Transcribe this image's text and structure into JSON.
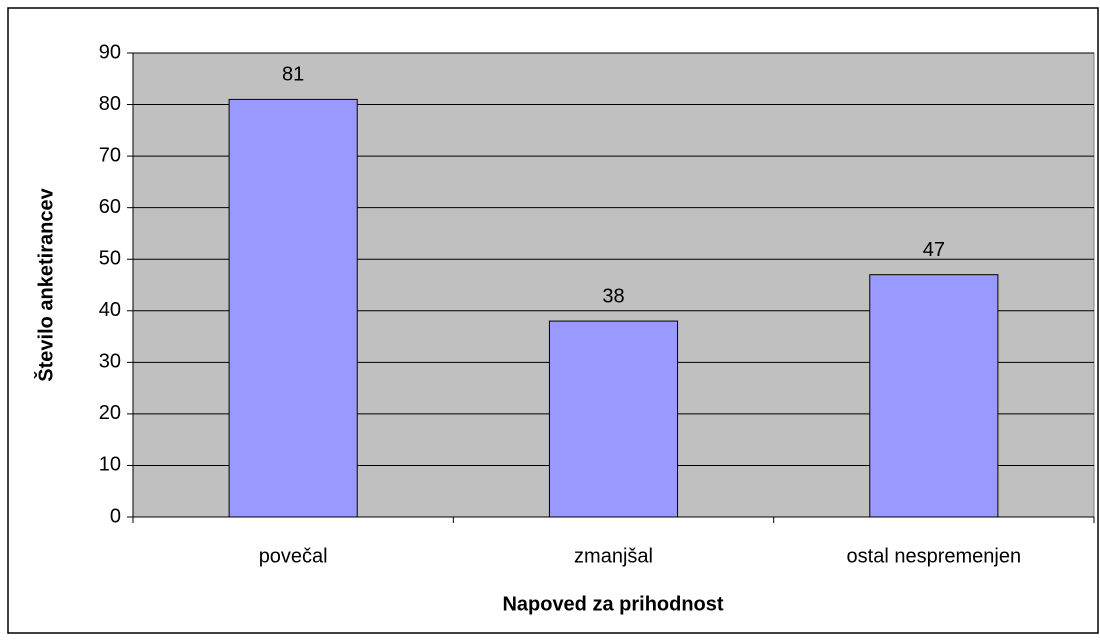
{
  "chart_data": {
    "type": "bar",
    "x_label": "Napoved za prihodnost",
    "y_label": "Število anketirancev",
    "categories": [
      "povečal",
      "zmanjšal",
      "ostal nespremenjen"
    ],
    "values": [
      81,
      38,
      47
    ],
    "color": "#9999ff",
    "ylim": [
      0,
      90
    ],
    "yticks": [
      0,
      10,
      20,
      30,
      40,
      50,
      60,
      70,
      80,
      90
    ],
    "grid": true,
    "plot_background": "#c0c0c0"
  }
}
